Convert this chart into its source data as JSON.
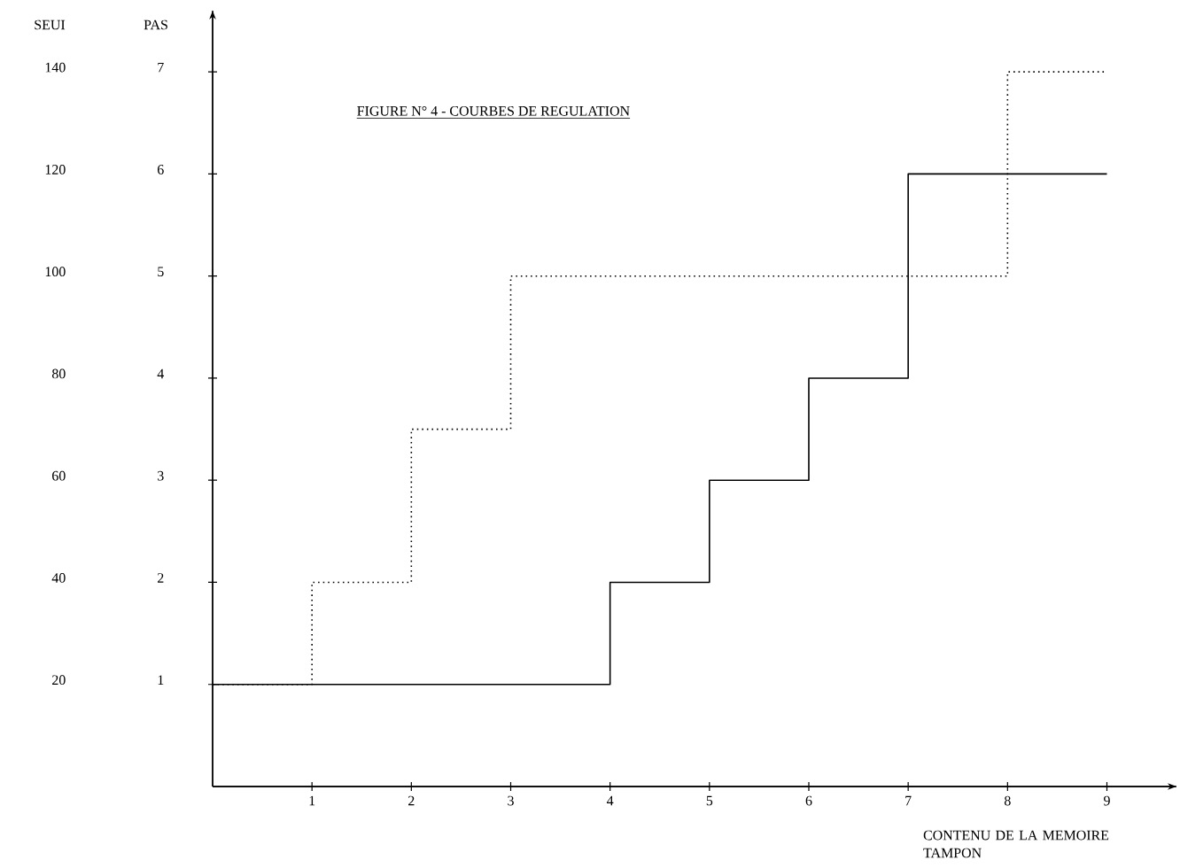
{
  "chart_data": {
    "type": "step",
    "title": "FIGURE N° 4 - COURBES DE REGULATION",
    "xlabel": "CONTENU DE LA MEMOIRE TAMPON",
    "ylabel": "PAS",
    "y2label": "SEUI",
    "xlim": [
      0,
      9.7
    ],
    "xticks": [
      1,
      2,
      3,
      4,
      5,
      6,
      7,
      8,
      9
    ],
    "ylim": [
      0,
      7.6
    ],
    "yticks": [
      1,
      2,
      3,
      4,
      5,
      6,
      7
    ],
    "y2lim": [
      0,
      152
    ],
    "y2ticks": [
      20,
      40,
      60,
      80,
      100,
      120,
      140
    ],
    "series": [
      {
        "color": "#000000",
        "line_style": "solid",
        "x": [
          0,
          4,
          5,
          6,
          7,
          9
        ],
        "values": [
          1,
          2,
          3,
          4,
          6,
          6
        ]
      },
      {
        "color": "#000000",
        "line_style": "dotted",
        "x": [
          0,
          1,
          2,
          3,
          8,
          9
        ],
        "values": [
          1,
          2,
          3.5,
          5,
          7,
          7
        ]
      }
    ]
  }
}
